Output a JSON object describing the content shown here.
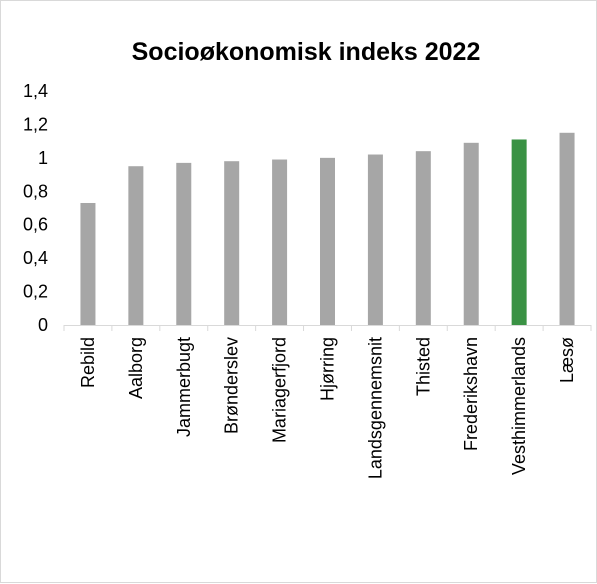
{
  "chart_data": {
    "type": "bar",
    "title": "Socioøkonomisk indeks 2022",
    "xlabel": "",
    "ylabel": "",
    "categories": [
      "Rebild",
      "Aalborg",
      "Jammerbugt",
      "Brønderslev",
      "Mariagerfjord",
      "Hjørring",
      "Landsgennemsnit",
      "Thisted",
      "Frederikshavn",
      "Vesthimmerlands",
      "Læsø"
    ],
    "values": [
      0.73,
      0.95,
      0.97,
      0.98,
      0.99,
      1.0,
      1.02,
      1.04,
      1.09,
      1.11,
      1.15
    ],
    "ylim": [
      0,
      1.4
    ],
    "yticks": [
      "0",
      "0,2",
      "0,4",
      "0,6",
      "0,8",
      "1",
      "1,2",
      "1,4"
    ],
    "grid": false,
    "legend": "none",
    "colors": {
      "default_bar": "#a6a6a6",
      "highlight_bar": "#3a9244",
      "axis": "#d9d9d9"
    },
    "highlight_index": 9
  }
}
